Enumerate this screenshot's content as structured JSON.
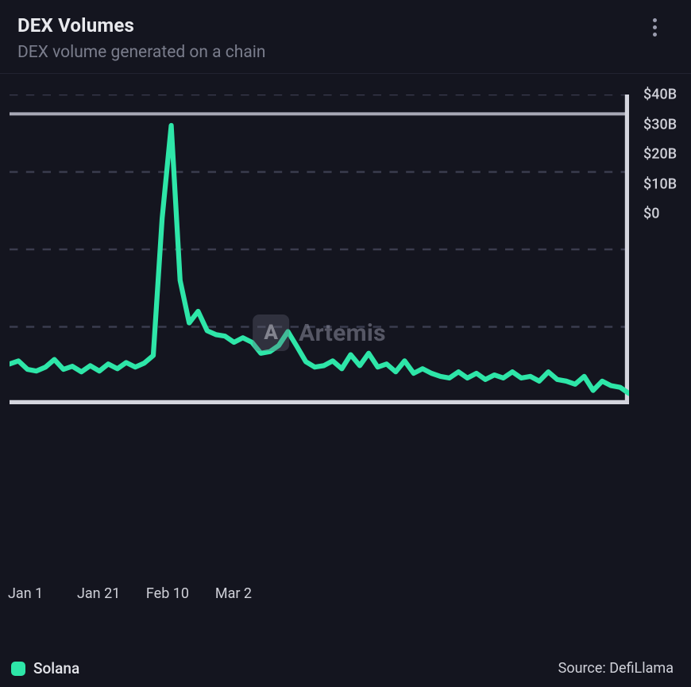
{
  "header": {
    "title": "DEX Volumes",
    "subtitle": "DEX volume generated on a chain"
  },
  "watermark": {
    "badge_letter": "A",
    "text": "Artemis",
    "badge_bg": "rgba(100,102,120,0.35)",
    "text_color": "rgba(140,142,158,0.55)"
  },
  "chart": {
    "type": "line",
    "background_color": "#14151f",
    "grid_color": "#3a3c4e",
    "grid_dash": "4 4",
    "axis_color": "#d4d5de",
    "axis_width": 2,
    "topline_color": "#a8a9b6",
    "series": [
      {
        "name": "Solana",
        "color": "#2ee6a8",
        "line_width": 2.4,
        "values": [
          5.2,
          5.6,
          4.5,
          4.3,
          4.8,
          5.8,
          4.5,
          4.9,
          4.2,
          5.0,
          4.3,
          5.2,
          4.6,
          5.4,
          4.8,
          5.3,
          6.3,
          24.0,
          36.0,
          16.0,
          10.5,
          12.0,
          9.5,
          9.0,
          8.8,
          8.0,
          8.6,
          8.0,
          6.6,
          6.8,
          7.6,
          9.4,
          7.5,
          5.5,
          4.8,
          5.0,
          5.6,
          4.6,
          6.4,
          5.0,
          6.6,
          4.8,
          5.2,
          4.2,
          5.6,
          4.0,
          4.6,
          4.0,
          3.6,
          3.4,
          4.2,
          3.4,
          4.0,
          3.2,
          3.8,
          3.4,
          4.2,
          3.4,
          3.6,
          3.0,
          4.2,
          3.2,
          3.0,
          2.6,
          3.6,
          1.8,
          3.0,
          2.4,
          2.2,
          1.4
        ]
      }
    ],
    "y_axis": {
      "ylim": [
        0,
        40
      ],
      "ticks": [
        0,
        10,
        20,
        30,
        40
      ],
      "tick_labels": [
        "$0",
        "$10B",
        "$20B",
        "$30B",
        "$40B"
      ],
      "minor_tick_count": 4,
      "minor_tick_len": 8,
      "major_tick_len": 14,
      "label_color": "#cfd0d8",
      "label_fontsize": 18
    },
    "x_axis": {
      "n_points": 70,
      "ticks": [
        0,
        20,
        40,
        60
      ],
      "tick_labels": [
        "Jan 1",
        "Jan 21",
        "Feb 10",
        "Mar 2"
      ],
      "major_tick_len": 12,
      "label_color": "#cfd0d8",
      "label_fontsize": 18
    }
  },
  "legend": {
    "items": [
      {
        "label": "Solana",
        "color": "#2ee6a8"
      }
    ]
  },
  "source": {
    "label": "Source: DefiLlama"
  }
}
